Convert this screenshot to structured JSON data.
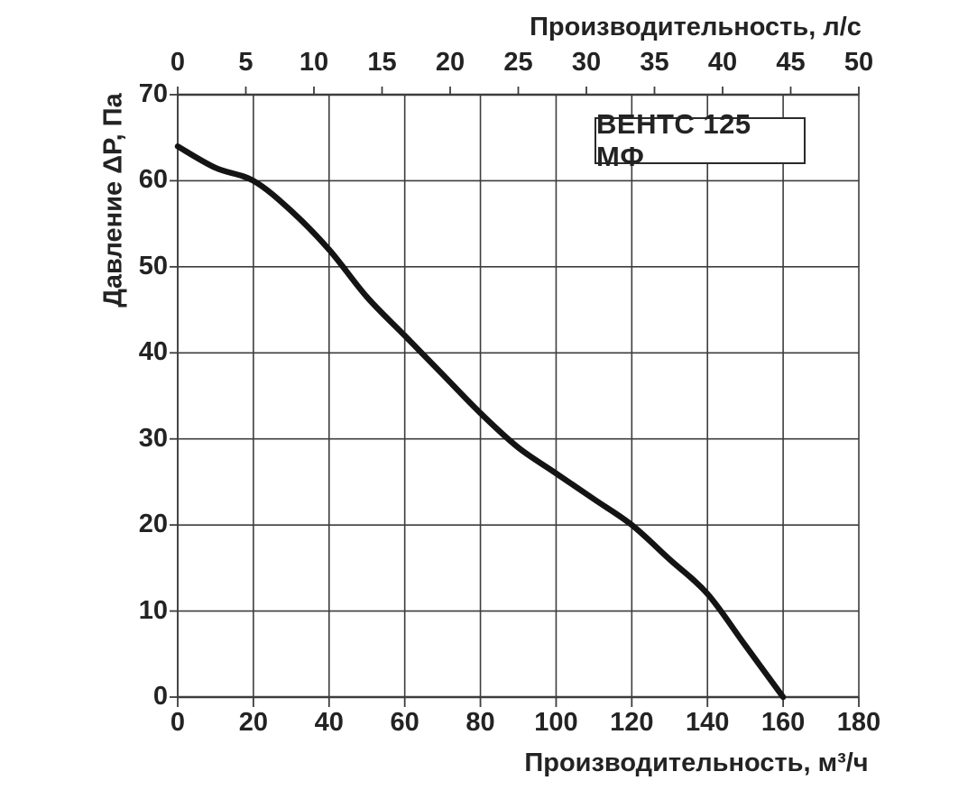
{
  "chart_data": {
    "type": "line",
    "title": "ВЕНТС 125 МФ",
    "x_bottom": {
      "label": "Производительность, м³/ч",
      "ticks": [
        0,
        20,
        40,
        60,
        80,
        100,
        120,
        140,
        160,
        180
      ],
      "range": [
        0,
        180
      ]
    },
    "x_top": {
      "label": "Производительность, л/с",
      "ticks": [
        0,
        5,
        10,
        15,
        20,
        25,
        30,
        35,
        40,
        45,
        50
      ],
      "range": [
        0,
        50
      ]
    },
    "y_left": {
      "label": "Давление ΔP, Па",
      "ticks": [
        0,
        10,
        20,
        30,
        40,
        50,
        60,
        70
      ],
      "range": [
        0,
        70
      ]
    },
    "grid": {
      "on": true,
      "x_step_m3h": 20,
      "y_step_pa": 10
    },
    "legend": "none",
    "series": [
      {
        "name": "ВЕНТС 125 МФ",
        "x_units": "м³/ч",
        "y_units": "Па",
        "points": [
          [
            0,
            64
          ],
          [
            10,
            61.5
          ],
          [
            20,
            60
          ],
          [
            30,
            56.5
          ],
          [
            40,
            52
          ],
          [
            50,
            46.5
          ],
          [
            60,
            42
          ],
          [
            70,
            37.5
          ],
          [
            80,
            33
          ],
          [
            90,
            29
          ],
          [
            100,
            26
          ],
          [
            110,
            23
          ],
          [
            120,
            20
          ],
          [
            130,
            16
          ],
          [
            140,
            12
          ],
          [
            150,
            6
          ],
          [
            160,
            0
          ]
        ]
      }
    ],
    "colors": {
      "background": "#ffffff",
      "grid": "#3d3d3d",
      "curve": "#141414",
      "text": "#232323"
    }
  }
}
